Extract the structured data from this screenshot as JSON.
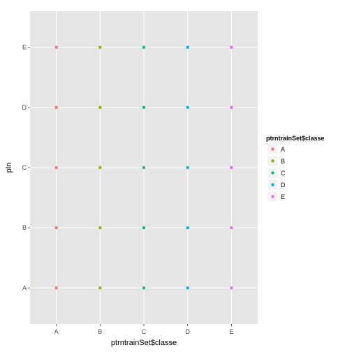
{
  "chart_data": {
    "type": "scatter",
    "xlabel": "ptrntrainSet$classe",
    "ylabel": "pln",
    "x_categories": [
      "A",
      "B",
      "C",
      "D",
      "E"
    ],
    "y_categories": [
      "A",
      "B",
      "C",
      "D",
      "E"
    ],
    "grid": true,
    "legend": {
      "title": "ptrntrainSet$classe",
      "placement": "right",
      "entries": [
        {
          "label": "A",
          "color": "#F8766D"
        },
        {
          "label": "B",
          "color": "#A3A500"
        },
        {
          "label": "C",
          "color": "#00BF7D"
        },
        {
          "label": "D",
          "color": "#00B0F6"
        },
        {
          "label": "E",
          "color": "#E76BF3"
        }
      ]
    },
    "points": [
      {
        "x": "A",
        "y": "A",
        "color_group": "A"
      },
      {
        "x": "A",
        "y": "B",
        "color_group": "A"
      },
      {
        "x": "A",
        "y": "C",
        "color_group": "A"
      },
      {
        "x": "A",
        "y": "D",
        "color_group": "A"
      },
      {
        "x": "A",
        "y": "E",
        "color_group": "A"
      },
      {
        "x": "B",
        "y": "A",
        "color_group": "B"
      },
      {
        "x": "B",
        "y": "B",
        "color_group": "B"
      },
      {
        "x": "B",
        "y": "C",
        "color_group": "B"
      },
      {
        "x": "B",
        "y": "D",
        "color_group": "B"
      },
      {
        "x": "B",
        "y": "E",
        "color_group": "B"
      },
      {
        "x": "C",
        "y": "A",
        "color_group": "C"
      },
      {
        "x": "C",
        "y": "B",
        "color_group": "C"
      },
      {
        "x": "C",
        "y": "C",
        "color_group": "C"
      },
      {
        "x": "C",
        "y": "D",
        "color_group": "C"
      },
      {
        "x": "C",
        "y": "E",
        "color_group": "C"
      },
      {
        "x": "D",
        "y": "A",
        "color_group": "D"
      },
      {
        "x": "D",
        "y": "B",
        "color_group": "D"
      },
      {
        "x": "D",
        "y": "C",
        "color_group": "D"
      },
      {
        "x": "D",
        "y": "D",
        "color_group": "D"
      },
      {
        "x": "D",
        "y": "E",
        "color_group": "D"
      },
      {
        "x": "E",
        "y": "A",
        "color_group": "E"
      },
      {
        "x": "E",
        "y": "B",
        "color_group": "E"
      },
      {
        "x": "E",
        "y": "C",
        "color_group": "E"
      },
      {
        "x": "E",
        "y": "D",
        "color_group": "E"
      },
      {
        "x": "E",
        "y": "E",
        "color_group": "E"
      }
    ],
    "colors": {
      "panel_background": "#E5E5E5",
      "grid_major": "#FFFFFF",
      "grid_minor": "#F2F2F2"
    }
  }
}
